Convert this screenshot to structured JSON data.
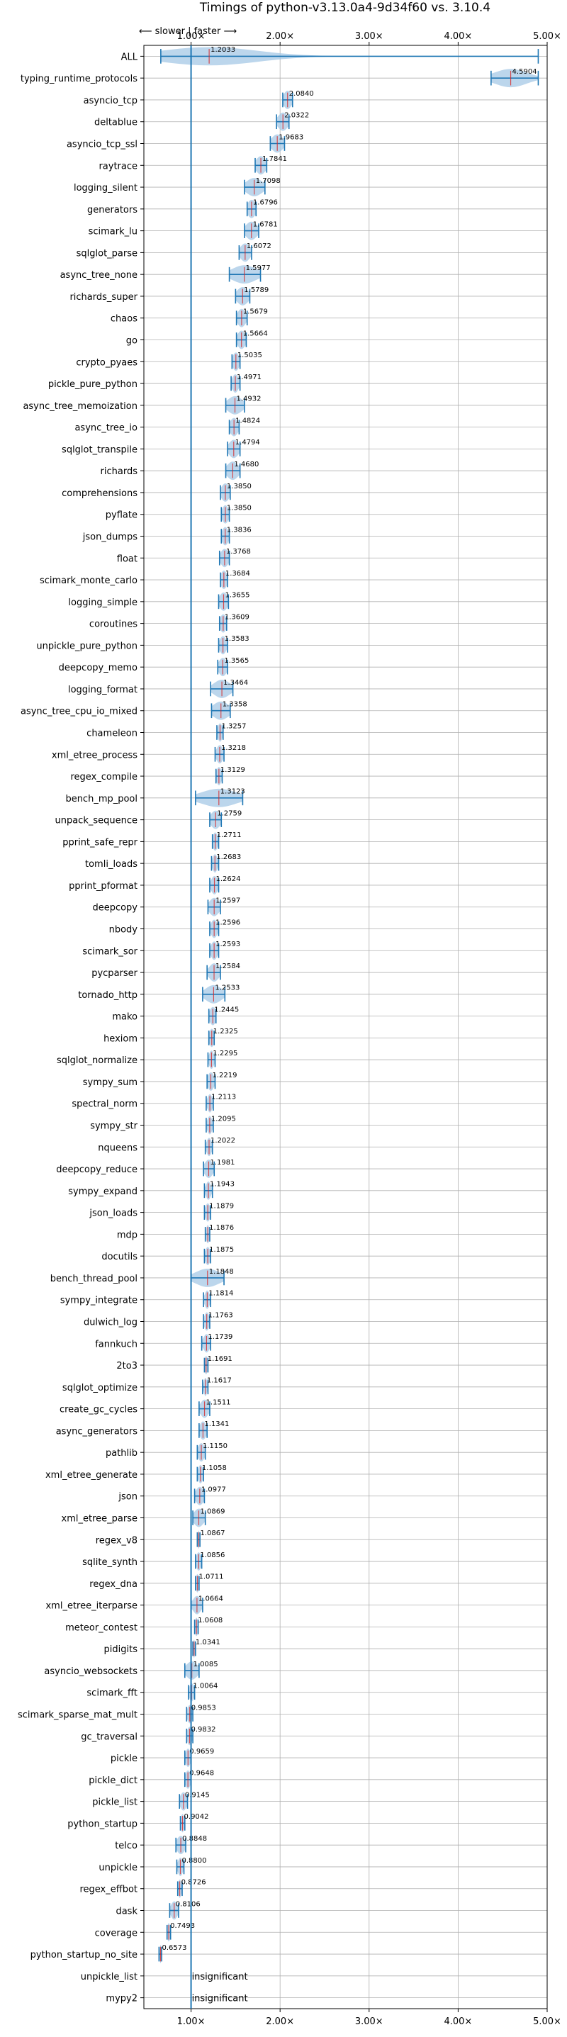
{
  "chart_data": {
    "type": "violin",
    "title": "Timings of python-v3.13.0a4-9d34f60 vs. 3.10.4",
    "xlabel": "",
    "ylabel": "",
    "xscale": "linear",
    "xlim": [
      0.47,
      5.0
    ],
    "xticks": [
      1,
      2,
      3,
      4,
      5
    ],
    "xtick_labels": [
      "1.00×",
      "2.00×",
      "3.00×",
      "4.00×",
      "5.00×"
    ],
    "xaxis_position": "top-and-bottom",
    "grid": true,
    "reference_line": 1.0,
    "annotation": "⟵ slower  |  faster ⟶",
    "colors": {
      "body": "#a6c8e6",
      "whisker": "#1f77b4",
      "mean_marker": "#d62728",
      "reference": "#1f77b4",
      "grid": "#b0b0b0"
    },
    "benchmarks": [
      {
        "name": "ALL",
        "value": 1.2033,
        "lo": 0.66,
        "hi": 4.9,
        "spread": 0.6
      },
      {
        "name": "typing_runtime_protocols",
        "value": 4.5904,
        "lo": 4.37,
        "hi": 4.9,
        "spread": 0.2
      },
      {
        "name": "asyncio_tcp",
        "value": 2.084,
        "lo": 2.03,
        "hi": 2.14,
        "spread": 0.05
      },
      {
        "name": "deltablue",
        "value": 2.0322,
        "lo": 1.96,
        "hi": 2.1,
        "spread": 0.06
      },
      {
        "name": "asyncio_tcp_ssl",
        "value": 1.9683,
        "lo": 1.89,
        "hi": 2.05,
        "spread": 0.07
      },
      {
        "name": "raytrace",
        "value": 1.7841,
        "lo": 1.72,
        "hi": 1.85,
        "spread": 0.06
      },
      {
        "name": "logging_silent",
        "value": 1.7098,
        "lo": 1.6,
        "hi": 1.83,
        "spread": 0.1
      },
      {
        "name": "generators",
        "value": 1.6796,
        "lo": 1.63,
        "hi": 1.73,
        "spread": 0.05
      },
      {
        "name": "scimark_lu",
        "value": 1.6781,
        "lo": 1.6,
        "hi": 1.76,
        "spread": 0.07
      },
      {
        "name": "sqlglot_parse",
        "value": 1.6072,
        "lo": 1.54,
        "hi": 1.68,
        "spread": 0.06
      },
      {
        "name": "async_tree_none",
        "value": 1.5977,
        "lo": 1.43,
        "hi": 1.78,
        "spread": 0.15
      },
      {
        "name": "richards_super",
        "value": 1.5789,
        "lo": 1.5,
        "hi": 1.66,
        "spread": 0.07
      },
      {
        "name": "chaos",
        "value": 1.5679,
        "lo": 1.51,
        "hi": 1.63,
        "spread": 0.05
      },
      {
        "name": "go",
        "value": 1.5664,
        "lo": 1.51,
        "hi": 1.62,
        "spread": 0.05
      },
      {
        "name": "crypto_pyaes",
        "value": 1.5035,
        "lo": 1.46,
        "hi": 1.55,
        "spread": 0.04
      },
      {
        "name": "pickle_pure_python",
        "value": 1.4971,
        "lo": 1.45,
        "hi": 1.55,
        "spread": 0.04
      },
      {
        "name": "async_tree_memoization",
        "value": 1.4932,
        "lo": 1.39,
        "hi": 1.6,
        "spread": 0.09
      },
      {
        "name": "async_tree_io",
        "value": 1.4824,
        "lo": 1.43,
        "hi": 1.54,
        "spread": 0.05
      },
      {
        "name": "sqlglot_transpile",
        "value": 1.4794,
        "lo": 1.41,
        "hi": 1.55,
        "spread": 0.06
      },
      {
        "name": "richards",
        "value": 1.468,
        "lo": 1.39,
        "hi": 1.55,
        "spread": 0.07
      },
      {
        "name": "comprehensions",
        "value": 1.385,
        "lo": 1.33,
        "hi": 1.44,
        "spread": 0.05
      },
      {
        "name": "pyflate",
        "value": 1.385,
        "lo": 1.34,
        "hi": 1.43,
        "spread": 0.04
      },
      {
        "name": "json_dumps",
        "value": 1.3836,
        "lo": 1.34,
        "hi": 1.43,
        "spread": 0.04
      },
      {
        "name": "float",
        "value": 1.3768,
        "lo": 1.32,
        "hi": 1.43,
        "spread": 0.05
      },
      {
        "name": "scimark_monte_carlo",
        "value": 1.3684,
        "lo": 1.33,
        "hi": 1.41,
        "spread": 0.04
      },
      {
        "name": "logging_simple",
        "value": 1.3655,
        "lo": 1.31,
        "hi": 1.42,
        "spread": 0.05
      },
      {
        "name": "coroutines",
        "value": 1.3609,
        "lo": 1.32,
        "hi": 1.4,
        "spread": 0.04
      },
      {
        "name": "unpickle_pure_python",
        "value": 1.3583,
        "lo": 1.31,
        "hi": 1.41,
        "spread": 0.04
      },
      {
        "name": "deepcopy_memo",
        "value": 1.3565,
        "lo": 1.3,
        "hi": 1.41,
        "spread": 0.05
      },
      {
        "name": "logging_format",
        "value": 1.3464,
        "lo": 1.22,
        "hi": 1.47,
        "spread": 0.1
      },
      {
        "name": "async_tree_cpu_io_mixed",
        "value": 1.3358,
        "lo": 1.23,
        "hi": 1.44,
        "spread": 0.1
      },
      {
        "name": "chameleon",
        "value": 1.3257,
        "lo": 1.29,
        "hi": 1.36,
        "spread": 0.03
      },
      {
        "name": "xml_etree_process",
        "value": 1.3218,
        "lo": 1.27,
        "hi": 1.37,
        "spread": 0.04
      },
      {
        "name": "regex_compile",
        "value": 1.3129,
        "lo": 1.28,
        "hi": 1.35,
        "spread": 0.03
      },
      {
        "name": "bench_mp_pool",
        "value": 1.3123,
        "lo": 1.05,
        "hi": 1.58,
        "spread": 0.22
      },
      {
        "name": "unpack_sequence",
        "value": 1.2759,
        "lo": 1.21,
        "hi": 1.34,
        "spread": 0.06
      },
      {
        "name": "pprint_safe_repr",
        "value": 1.2711,
        "lo": 1.24,
        "hi": 1.31,
        "spread": 0.03
      },
      {
        "name": "tomli_loads",
        "value": 1.2683,
        "lo": 1.23,
        "hi": 1.31,
        "spread": 0.03
      },
      {
        "name": "pprint_pformat",
        "value": 1.2624,
        "lo": 1.21,
        "hi": 1.31,
        "spread": 0.04
      },
      {
        "name": "deepcopy",
        "value": 1.2597,
        "lo": 1.19,
        "hi": 1.33,
        "spread": 0.06
      },
      {
        "name": "nbody",
        "value": 1.2596,
        "lo": 1.21,
        "hi": 1.31,
        "spread": 0.04
      },
      {
        "name": "scimark_sor",
        "value": 1.2593,
        "lo": 1.21,
        "hi": 1.31,
        "spread": 0.04
      },
      {
        "name": "pycparser",
        "value": 1.2584,
        "lo": 1.18,
        "hi": 1.33,
        "spread": 0.06
      },
      {
        "name": "tornado_http",
        "value": 1.2533,
        "lo": 1.13,
        "hi": 1.38,
        "spread": 0.1
      },
      {
        "name": "mako",
        "value": 1.2445,
        "lo": 1.2,
        "hi": 1.28,
        "spread": 0.04
      },
      {
        "name": "hexiom",
        "value": 1.2325,
        "lo": 1.2,
        "hi": 1.26,
        "spread": 0.03
      },
      {
        "name": "sqlglot_normalize",
        "value": 1.2295,
        "lo": 1.19,
        "hi": 1.27,
        "spread": 0.03
      },
      {
        "name": "sympy_sum",
        "value": 1.2219,
        "lo": 1.18,
        "hi": 1.27,
        "spread": 0.04
      },
      {
        "name": "spectral_norm",
        "value": 1.2113,
        "lo": 1.17,
        "hi": 1.25,
        "spread": 0.03
      },
      {
        "name": "sympy_str",
        "value": 1.2095,
        "lo": 1.17,
        "hi": 1.25,
        "spread": 0.03
      },
      {
        "name": "nqueens",
        "value": 1.2022,
        "lo": 1.16,
        "hi": 1.24,
        "spread": 0.03
      },
      {
        "name": "deepcopy_reduce",
        "value": 1.1981,
        "lo": 1.14,
        "hi": 1.26,
        "spread": 0.05
      },
      {
        "name": "sympy_expand",
        "value": 1.1943,
        "lo": 1.15,
        "hi": 1.24,
        "spread": 0.03
      },
      {
        "name": "json_loads",
        "value": 1.1879,
        "lo": 1.15,
        "hi": 1.22,
        "spread": 0.03
      },
      {
        "name": "mdp",
        "value": 1.1876,
        "lo": 1.16,
        "hi": 1.21,
        "spread": 0.02
      },
      {
        "name": "docutils",
        "value": 1.1875,
        "lo": 1.15,
        "hi": 1.22,
        "spread": 0.03
      },
      {
        "name": "bench_thread_pool",
        "value": 1.1848,
        "lo": 1.0,
        "hi": 1.37,
        "spread": 0.15
      },
      {
        "name": "sympy_integrate",
        "value": 1.1814,
        "lo": 1.14,
        "hi": 1.22,
        "spread": 0.03
      },
      {
        "name": "dulwich_log",
        "value": 1.1763,
        "lo": 1.14,
        "hi": 1.21,
        "spread": 0.03
      },
      {
        "name": "fannkuch",
        "value": 1.1739,
        "lo": 1.12,
        "hi": 1.22,
        "spread": 0.04
      },
      {
        "name": "2to3",
        "value": 1.1691,
        "lo": 1.15,
        "hi": 1.19,
        "spread": 0.02
      },
      {
        "name": "sqlglot_optimize",
        "value": 1.1617,
        "lo": 1.13,
        "hi": 1.19,
        "spread": 0.02
      },
      {
        "name": "create_gc_cycles",
        "value": 1.1511,
        "lo": 1.09,
        "hi": 1.21,
        "spread": 0.05
      },
      {
        "name": "async_generators",
        "value": 1.1341,
        "lo": 1.09,
        "hi": 1.18,
        "spread": 0.04
      },
      {
        "name": "pathlib",
        "value": 1.115,
        "lo": 1.07,
        "hi": 1.16,
        "spread": 0.04
      },
      {
        "name": "xml_etree_generate",
        "value": 1.1058,
        "lo": 1.07,
        "hi": 1.14,
        "spread": 0.03
      },
      {
        "name": "json",
        "value": 1.0977,
        "lo": 1.04,
        "hi": 1.15,
        "spread": 0.05
      },
      {
        "name": "xml_etree_parse",
        "value": 1.0869,
        "lo": 1.02,
        "hi": 1.16,
        "spread": 0.06
      },
      {
        "name": "regex_v8",
        "value": 1.0867,
        "lo": 1.07,
        "hi": 1.1,
        "spread": 0.01
      },
      {
        "name": "sqlite_synth",
        "value": 1.0856,
        "lo": 1.05,
        "hi": 1.12,
        "spread": 0.03
      },
      {
        "name": "regex_dna",
        "value": 1.0711,
        "lo": 1.05,
        "hi": 1.09,
        "spread": 0.02
      },
      {
        "name": "xml_etree_iterparse",
        "value": 1.0664,
        "lo": 1.0,
        "hi": 1.13,
        "spread": 0.05
      },
      {
        "name": "meteor_contest",
        "value": 1.0608,
        "lo": 1.04,
        "hi": 1.08,
        "spread": 0.02
      },
      {
        "name": "pidigits",
        "value": 1.0341,
        "lo": 1.02,
        "hi": 1.05,
        "spread": 0.01
      },
      {
        "name": "asyncio_websockets",
        "value": 1.0085,
        "lo": 0.93,
        "hi": 1.09,
        "spread": 0.07
      },
      {
        "name": "scimark_fft",
        "value": 1.0064,
        "lo": 0.97,
        "hi": 1.04,
        "spread": 0.03
      },
      {
        "name": "scimark_sparse_mat_mult",
        "value": 0.9853,
        "lo": 0.95,
        "hi": 1.02,
        "spread": 0.03
      },
      {
        "name": "gc_traversal",
        "value": 0.9832,
        "lo": 0.95,
        "hi": 1.02,
        "spread": 0.03
      },
      {
        "name": "pickle",
        "value": 0.9659,
        "lo": 0.93,
        "hi": 1.0,
        "spread": 0.03
      },
      {
        "name": "pickle_dict",
        "value": 0.9648,
        "lo": 0.93,
        "hi": 1.0,
        "spread": 0.03
      },
      {
        "name": "pickle_list",
        "value": 0.9145,
        "lo": 0.87,
        "hi": 0.96,
        "spread": 0.04
      },
      {
        "name": "python_startup",
        "value": 0.9042,
        "lo": 0.88,
        "hi": 0.93,
        "spread": 0.02
      },
      {
        "name": "telco",
        "value": 0.8848,
        "lo": 0.83,
        "hi": 0.94,
        "spread": 0.05
      },
      {
        "name": "unpickle",
        "value": 0.88,
        "lo": 0.84,
        "hi": 0.92,
        "spread": 0.03
      },
      {
        "name": "regex_effbot",
        "value": 0.8726,
        "lo": 0.85,
        "hi": 0.9,
        "spread": 0.02
      },
      {
        "name": "dask",
        "value": 0.8106,
        "lo": 0.76,
        "hi": 0.86,
        "spread": 0.04
      },
      {
        "name": "coverage",
        "value": 0.7493,
        "lo": 0.73,
        "hi": 0.77,
        "spread": 0.02
      },
      {
        "name": "python_startup_no_site",
        "value": 0.6573,
        "lo": 0.64,
        "hi": 0.67,
        "spread": 0.01
      },
      {
        "name": "unpickle_list",
        "value": null,
        "note": "insignificant"
      },
      {
        "name": "mypy2",
        "value": null,
        "note": "insignificant"
      }
    ]
  }
}
